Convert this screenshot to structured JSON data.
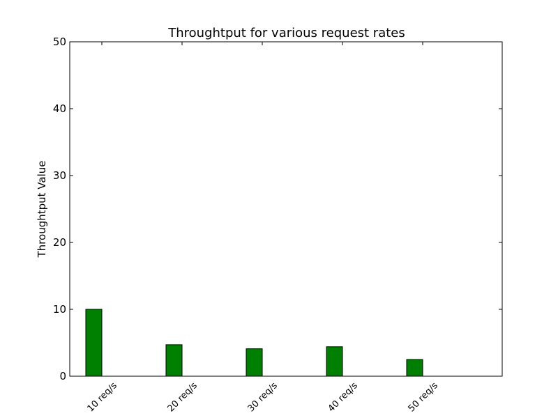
{
  "chart_data": {
    "type": "bar",
    "title": "Throughtput for various request rates",
    "xlabel": "",
    "ylabel": "Throughtput Value",
    "categories": [
      "10 req/s",
      "20 req/s",
      "30 req/s",
      "40 req/s",
      "50 req/s"
    ],
    "values": [
      10.0,
      4.7,
      4.1,
      4.4,
      2.5
    ],
    "ylim": [
      0,
      50
    ],
    "yticks": [
      "0",
      "10",
      "20",
      "30",
      "40",
      "50"
    ],
    "grid": false,
    "bar_color": "#008000",
    "edge_color": "#000000"
  }
}
